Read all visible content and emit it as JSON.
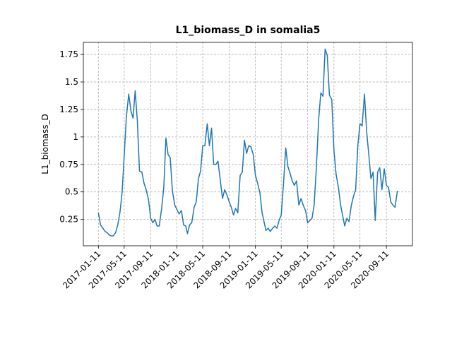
{
  "chart_data": {
    "type": "line",
    "title": "L1_biomass_D in somalia5",
    "y_label": "L1_biomass_D",
    "x": [
      "2017-01-11",
      "2017-01-21",
      "2017-02-01",
      "2017-02-11",
      "2017-02-21",
      "2017-03-01",
      "2017-03-11",
      "2017-03-21",
      "2017-04-01",
      "2017-04-11",
      "2017-04-21",
      "2017-05-01",
      "2017-05-11",
      "2017-05-21",
      "2017-06-01",
      "2017-06-11",
      "2017-06-21",
      "2017-07-01",
      "2017-07-11",
      "2017-07-21",
      "2017-08-01",
      "2017-08-11",
      "2017-08-21",
      "2017-09-01",
      "2017-09-11",
      "2017-09-21",
      "2017-10-01",
      "2017-10-11",
      "2017-10-21",
      "2017-11-01",
      "2017-11-11",
      "2017-11-21",
      "2017-12-01",
      "2017-12-11",
      "2017-12-21",
      "2018-01-01",
      "2018-01-11",
      "2018-01-21",
      "2018-02-01",
      "2018-02-11",
      "2018-02-21",
      "2018-03-01",
      "2018-03-11",
      "2018-03-21",
      "2018-04-01",
      "2018-04-11",
      "2018-04-21",
      "2018-05-01",
      "2018-05-11",
      "2018-05-21",
      "2018-06-01",
      "2018-06-11",
      "2018-06-21",
      "2018-07-01",
      "2018-07-11",
      "2018-07-21",
      "2018-08-01",
      "2018-08-11",
      "2018-08-21",
      "2018-09-01",
      "2018-09-11",
      "2018-09-21",
      "2018-10-01",
      "2018-10-11",
      "2018-10-21",
      "2018-11-01",
      "2018-11-11",
      "2018-11-21",
      "2018-12-01",
      "2018-12-11",
      "2018-12-21",
      "2019-01-01",
      "2019-01-11",
      "2019-01-21",
      "2019-02-01",
      "2019-02-11",
      "2019-02-21",
      "2019-03-01",
      "2019-03-11",
      "2019-03-21",
      "2019-04-01",
      "2019-04-11",
      "2019-04-21",
      "2019-05-01",
      "2019-05-11",
      "2019-05-21",
      "2019-06-01",
      "2019-06-11",
      "2019-06-21",
      "2019-07-01",
      "2019-07-11",
      "2019-07-21",
      "2019-08-01",
      "2019-08-11",
      "2019-08-21",
      "2019-09-01",
      "2019-09-11",
      "2019-09-21",
      "2019-10-01",
      "2019-10-11",
      "2019-10-21",
      "2019-11-01",
      "2019-11-11",
      "2019-11-21",
      "2019-12-01",
      "2019-12-11",
      "2019-12-21",
      "2020-01-01",
      "2020-01-11",
      "2020-01-21",
      "2020-02-01",
      "2020-02-11",
      "2020-02-21",
      "2020-03-01",
      "2020-03-11",
      "2020-03-21",
      "2020-04-01",
      "2020-04-11",
      "2020-04-21",
      "2020-05-01",
      "2020-05-11",
      "2020-05-21",
      "2020-06-01",
      "2020-06-11",
      "2020-06-21",
      "2020-07-01",
      "2020-07-11",
      "2020-07-21",
      "2020-08-01",
      "2020-08-11",
      "2020-08-21",
      "2020-09-01",
      "2020-09-11",
      "2020-09-21",
      "2020-10-01",
      "2020-10-11",
      "2020-10-21",
      "2020-11-01"
    ],
    "series": [
      {
        "color": "#1f77b4",
        "values": [
          0.31,
          0.2,
          0.17,
          0.14,
          0.13,
          0.11,
          0.1,
          0.1,
          0.13,
          0.2,
          0.31,
          0.49,
          0.83,
          1.18,
          1.39,
          1.24,
          1.17,
          1.42,
          1.15,
          0.69,
          0.68,
          0.58,
          0.52,
          0.43,
          0.26,
          0.22,
          0.25,
          0.19,
          0.19,
          0.35,
          0.54,
          0.99,
          0.84,
          0.81,
          0.51,
          0.38,
          0.34,
          0.3,
          0.33,
          0.2,
          0.19,
          0.12,
          0.2,
          0.22,
          0.36,
          0.41,
          0.62,
          0.69,
          0.92,
          0.92,
          1.12,
          0.92,
          1.08,
          0.75,
          0.75,
          0.78,
          0.6,
          0.44,
          0.52,
          0.47,
          0.41,
          0.36,
          0.29,
          0.35,
          0.31,
          0.65,
          0.68,
          0.97,
          0.85,
          0.92,
          0.91,
          0.84,
          0.65,
          0.58,
          0.49,
          0.31,
          0.22,
          0.15,
          0.17,
          0.14,
          0.17,
          0.19,
          0.17,
          0.24,
          0.29,
          0.56,
          0.9,
          0.73,
          0.67,
          0.6,
          0.56,
          0.6,
          0.38,
          0.44,
          0.38,
          0.33,
          0.22,
          0.24,
          0.26,
          0.38,
          0.71,
          1.16,
          1.4,
          1.37,
          1.8,
          1.74,
          1.38,
          1.34,
          0.88,
          0.66,
          0.54,
          0.38,
          0.28,
          0.19,
          0.26,
          0.23,
          0.38,
          0.46,
          0.52,
          0.92,
          1.12,
          1.1,
          1.39,
          1.05,
          0.84,
          0.62,
          0.68,
          0.24,
          0.68,
          0.72,
          0.52,
          0.71,
          0.56,
          0.54,
          0.41,
          0.38,
          0.36,
          0.51
        ]
      }
    ],
    "xlim": [
      "2016-11-02",
      "2021-01-10"
    ],
    "xticks": [
      "2017-01-11",
      "2017-05-11",
      "2017-09-11",
      "2018-01-11",
      "2018-05-11",
      "2018-09-11",
      "2019-01-11",
      "2019-05-11",
      "2019-09-11",
      "2020-01-11",
      "2020-05-11",
      "2020-09-11"
    ],
    "ylim": [
      0.01,
      1.86
    ],
    "yticks": [
      0.25,
      0.5,
      0.75,
      1.0,
      1.25,
      1.5,
      1.75
    ],
    "grid": true
  }
}
